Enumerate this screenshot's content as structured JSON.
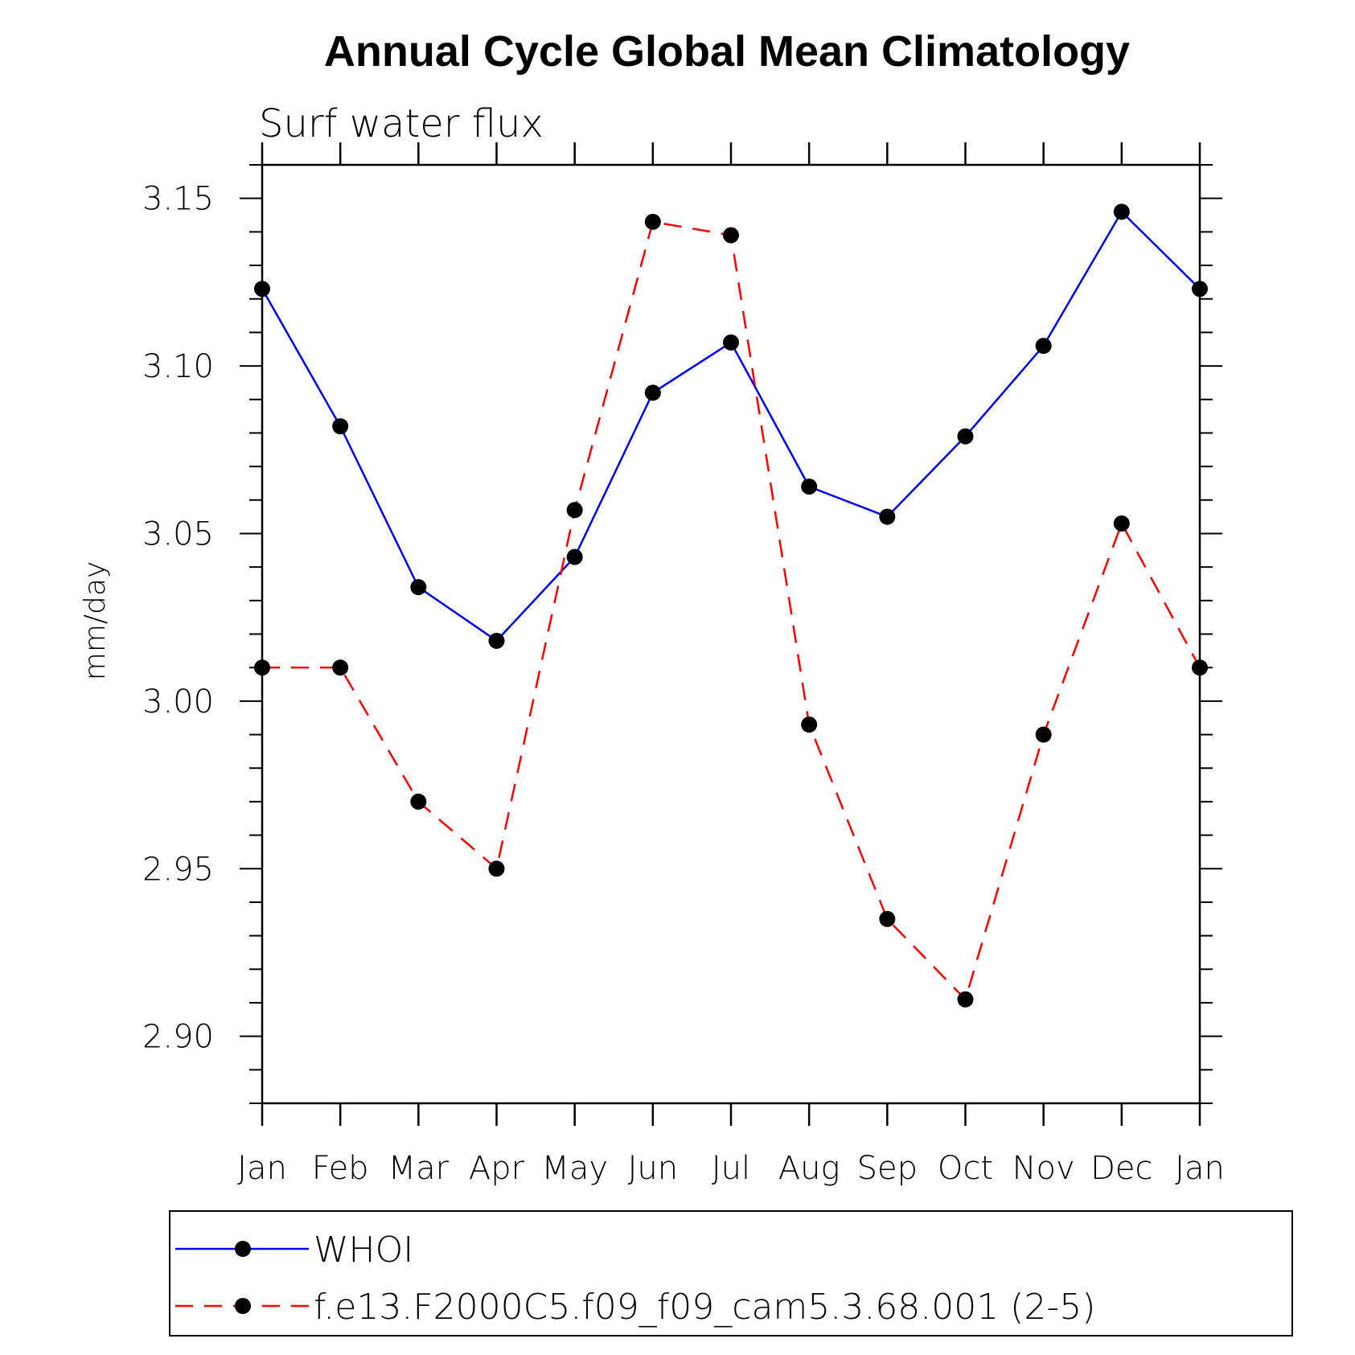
{
  "chart_data": {
    "type": "line",
    "title": "Annual Cycle Global Mean Climatology",
    "subtitle": "Surf water flux",
    "xlabel": "",
    "ylabel": "mm/day",
    "categories": [
      "Jan",
      "Feb",
      "Mar",
      "Apr",
      "May",
      "Jun",
      "Jul",
      "Aug",
      "Sep",
      "Oct",
      "Nov",
      "Dec",
      "Jan"
    ],
    "ylim": [
      2.88,
      3.16
    ],
    "yticks": [
      "2.90",
      "2.95",
      "3.00",
      "3.05",
      "3.10",
      "3.15"
    ],
    "grid": false,
    "legend_position": "bottom",
    "series": [
      {
        "name": "WHOI",
        "color": "#0000ff",
        "dash": "solid",
        "values": [
          3.123,
          3.082,
          3.034,
          3.018,
          3.043,
          3.092,
          3.107,
          3.064,
          3.055,
          3.079,
          3.106,
          3.146,
          3.123
        ]
      },
      {
        "name": "f.e13.F2000C5.f09_f09_cam5.3.68.001 (2-5)",
        "color": "#ff0000",
        "dash": "dashed",
        "values": [
          3.01,
          3.01,
          2.97,
          2.95,
          3.057,
          3.143,
          3.139,
          2.993,
          2.935,
          2.911,
          2.99,
          3.053,
          3.01
        ]
      }
    ]
  }
}
